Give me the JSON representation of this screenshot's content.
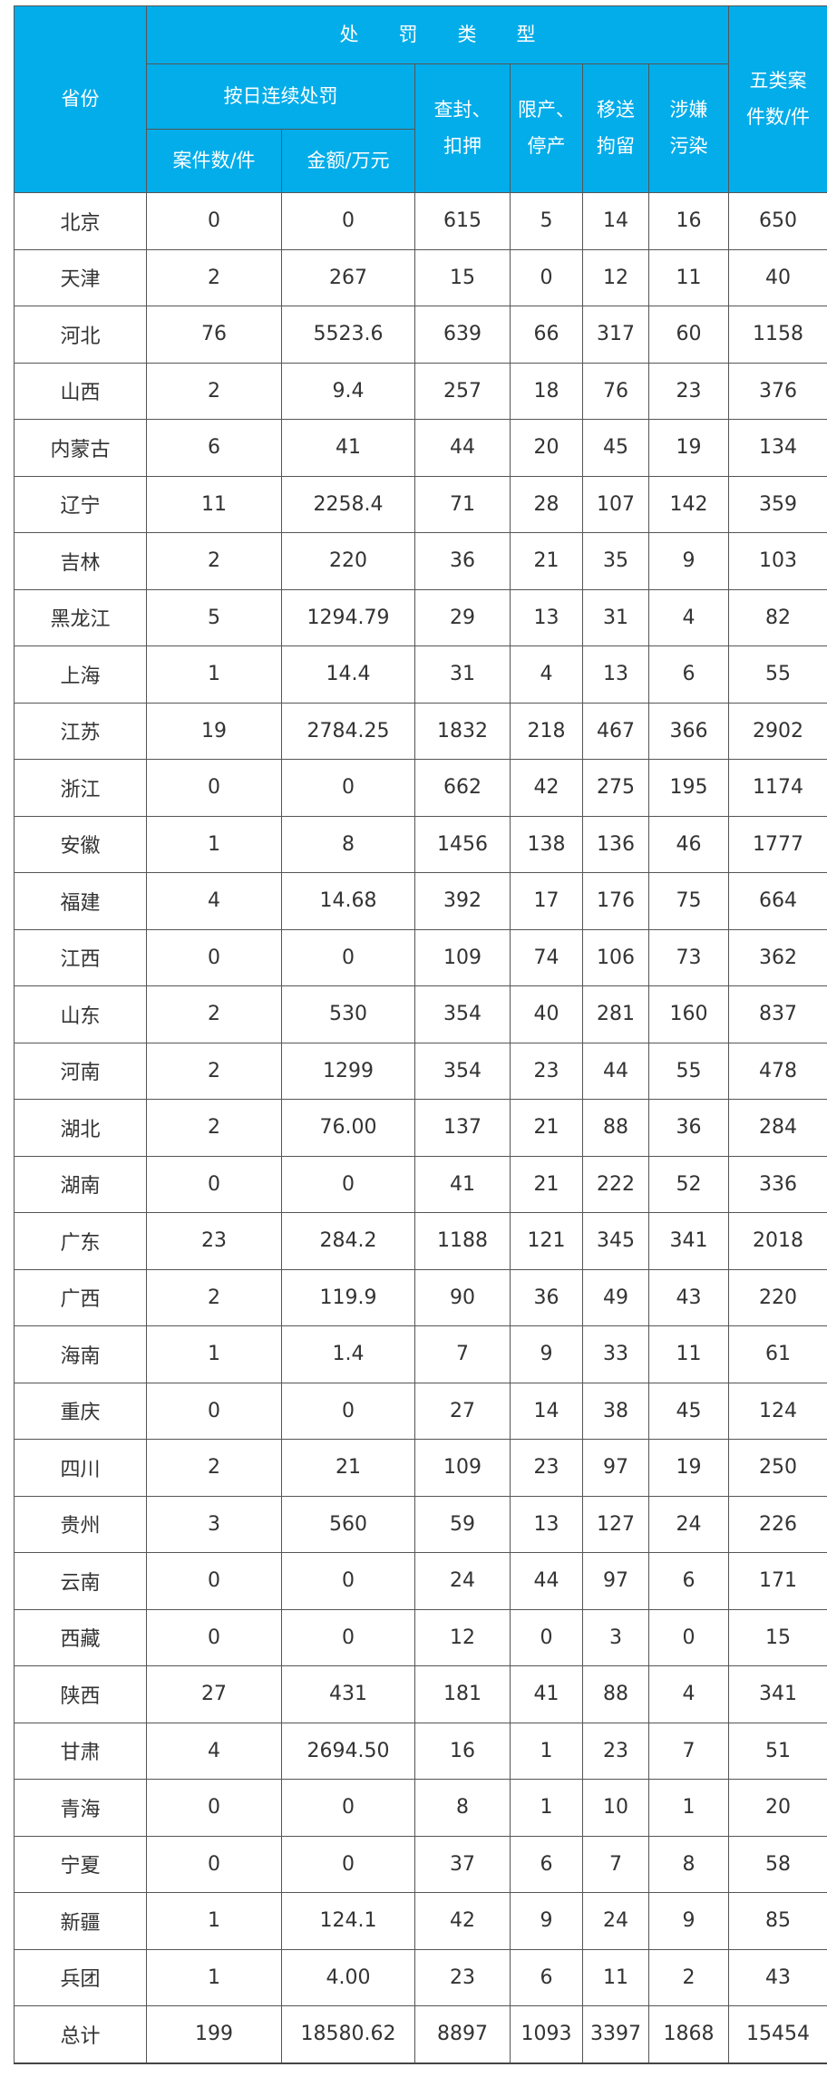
{
  "header": {
    "province": "省份",
    "penalty_type": "处罚类型",
    "daily_penalty": "按日连续处罚",
    "case_count": "案件数/件",
    "amount": "金额/万元",
    "seal_seize": [
      "查封、",
      "扣押"
    ],
    "limit_stop": [
      "限产、",
      "停产"
    ],
    "transfer_detain": [
      "移送",
      "拘留"
    ],
    "pollution_suspect": [
      "涉嫌",
      "污染"
    ],
    "five_total": [
      "五类案",
      "件数/件"
    ]
  },
  "colors": {
    "header_bg": "#02adea",
    "header_text": "#ffffff",
    "border": "#555555"
  },
  "rows": [
    [
      "北京",
      "0",
      "0",
      "615",
      "5",
      "14",
      "16",
      "650"
    ],
    [
      "天津",
      "2",
      "267",
      "15",
      "0",
      "12",
      "11",
      "40"
    ],
    [
      "河北",
      "76",
      "5523.6",
      "639",
      "66",
      "317",
      "60",
      "1158"
    ],
    [
      "山西",
      "2",
      "9.4",
      "257",
      "18",
      "76",
      "23",
      "376"
    ],
    [
      "内蒙古",
      "6",
      "41",
      "44",
      "20",
      "45",
      "19",
      "134"
    ],
    [
      "辽宁",
      "11",
      "2258.4",
      "71",
      "28",
      "107",
      "142",
      "359"
    ],
    [
      "吉林",
      "2",
      "220",
      "36",
      "21",
      "35",
      "9",
      "103"
    ],
    [
      "黑龙江",
      "5",
      "1294.79",
      "29",
      "13",
      "31",
      "4",
      "82"
    ],
    [
      "上海",
      "1",
      "14.4",
      "31",
      "4",
      "13",
      "6",
      "55"
    ],
    [
      "江苏",
      "19",
      "2784.25",
      "1832",
      "218",
      "467",
      "366",
      "2902"
    ],
    [
      "浙江",
      "0",
      "0",
      "662",
      "42",
      "275",
      "195",
      "1174"
    ],
    [
      "安徽",
      "1",
      "8",
      "1456",
      "138",
      "136",
      "46",
      "1777"
    ],
    [
      "福建",
      "4",
      "14.68",
      "392",
      "17",
      "176",
      "75",
      "664"
    ],
    [
      "江西",
      "0",
      "0",
      "109",
      "74",
      "106",
      "73",
      "362"
    ],
    [
      "山东",
      "2",
      "530",
      "354",
      "40",
      "281",
      "160",
      "837"
    ],
    [
      "河南",
      "2",
      "1299",
      "354",
      "23",
      "44",
      "55",
      "478"
    ],
    [
      "湖北",
      "2",
      "76.00",
      "137",
      "21",
      "88",
      "36",
      "284"
    ],
    [
      "湖南",
      "0",
      "0",
      "41",
      "21",
      "222",
      "52",
      "336"
    ],
    [
      "广东",
      "23",
      "284.2",
      "1188",
      "121",
      "345",
      "341",
      "2018"
    ],
    [
      "广西",
      "2",
      "119.9",
      "90",
      "36",
      "49",
      "43",
      "220"
    ],
    [
      "海南",
      "1",
      "1.4",
      "7",
      "9",
      "33",
      "11",
      "61"
    ],
    [
      "重庆",
      "0",
      "0",
      "27",
      "14",
      "38",
      "45",
      "124"
    ],
    [
      "四川",
      "2",
      "21",
      "109",
      "23",
      "97",
      "19",
      "250"
    ],
    [
      "贵州",
      "3",
      "560",
      "59",
      "13",
      "127",
      "24",
      "226"
    ],
    [
      "云南",
      "0",
      "0",
      "24",
      "44",
      "97",
      "6",
      "171"
    ],
    [
      "西藏",
      "0",
      "0",
      "12",
      "0",
      "3",
      "0",
      "15"
    ],
    [
      "陕西",
      "27",
      "431",
      "181",
      "41",
      "88",
      "4",
      "341"
    ],
    [
      "甘肃",
      "4",
      "2694.50",
      "16",
      "1",
      "23",
      "7",
      "51"
    ],
    [
      "青海",
      "0",
      "0",
      "8",
      "1",
      "10",
      "1",
      "20"
    ],
    [
      "宁夏",
      "0",
      "0",
      "37",
      "6",
      "7",
      "8",
      "58"
    ],
    [
      "新疆",
      "1",
      "124.1",
      "42",
      "9",
      "24",
      "9",
      "85"
    ],
    [
      "兵团",
      "1",
      "4.00",
      "23",
      "6",
      "11",
      "2",
      "43"
    ],
    [
      "总计",
      "199",
      "18580.62",
      "8897",
      "1093",
      "3397",
      "1868",
      "15454"
    ]
  ]
}
